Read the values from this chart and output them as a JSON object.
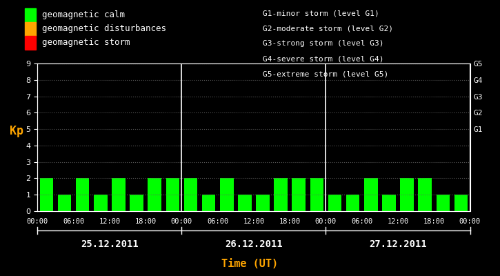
{
  "background_color": "#000000",
  "plot_bg_color": "#000000",
  "bar_color": "#00ff00",
  "text_color": "#ffffff",
  "ylabel_color": "#ffa500",
  "xlabel_color": "#ffa500",
  "ylabel": "Kp",
  "xlabel": "Time (UT)",
  "ylim": [
    0,
    9
  ],
  "yticks": [
    0,
    1,
    2,
    3,
    4,
    5,
    6,
    7,
    8,
    9
  ],
  "right_labels": [
    "G1",
    "G2",
    "G3",
    "G4",
    "G5"
  ],
  "right_label_yvals": [
    5,
    6,
    7,
    8,
    9
  ],
  "days": [
    "25.12.2011",
    "26.12.2011",
    "27.12.2011"
  ],
  "kp_values": [
    [
      2,
      1,
      2,
      1,
      2,
      1,
      2,
      2
    ],
    [
      2,
      1,
      2,
      1,
      1,
      2,
      2,
      2
    ],
    [
      1,
      1,
      2,
      1,
      2,
      2,
      1,
      1
    ]
  ],
  "legend_items": [
    {
      "label": "geomagnetic calm",
      "color": "#00ff00"
    },
    {
      "label": "geomagnetic disturbances",
      "color": "#ffa500"
    },
    {
      "label": "geomagnetic storm",
      "color": "#ff0000"
    }
  ],
  "storm_legend_lines": [
    "G1-minor storm (level G1)",
    "G2-moderate storm (level G2)",
    "G3-strong storm (level G3)",
    "G4-severe storm (level G4)",
    "G5-extreme storm (level G5)"
  ],
  "grid_dot_color": "#606060",
  "divider_color": "#ffffff",
  "axis_color": "#ffffff",
  "tick_color": "#ffffff",
  "font_family": "monospace"
}
